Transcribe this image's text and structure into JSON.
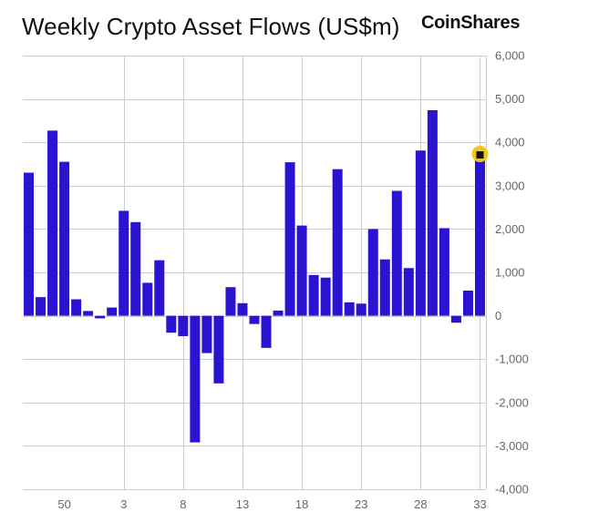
{
  "header": {
    "title": "Weekly Crypto Asset Flows (US$m)",
    "brand": "CoinShares"
  },
  "colors": {
    "bar": "#2a14d2",
    "grid": "#cccccc",
    "marker_fill": "#f2c61f",
    "marker_core": "#111111"
  },
  "chart_data": {
    "type": "bar",
    "title": "Weekly Crypto Asset Flows (US$m)",
    "xlabel": "",
    "ylabel": "",
    "ylim": [
      -4000,
      6000
    ],
    "y_axis_side": "right",
    "grid": true,
    "y_ticks": [
      -4000,
      -3000,
      -2000,
      -1000,
      0,
      1000,
      2000,
      3000,
      4000,
      5000,
      6000
    ],
    "y_tick_labels": [
      "-4,000",
      "-3,000",
      "-2,000",
      "-1,000",
      "0",
      "1,000",
      "2,000",
      "3,000",
      "4,000",
      "5,000",
      "6,000"
    ],
    "x_tick_labels": [
      "50",
      "3",
      "8",
      "13",
      "18",
      "23",
      "28",
      "33"
    ],
    "x_tick_indices": [
      3,
      8,
      13,
      18,
      23,
      28,
      33,
      38
    ],
    "values": [
      3300,
      430,
      4270,
      3550,
      380,
      110,
      -60,
      190,
      2420,
      2160,
      760,
      1280,
      -390,
      -470,
      -2920,
      -860,
      -1560,
      660,
      290,
      -190,
      -740,
      120,
      3540,
      2080,
      940,
      880,
      3380,
      310,
      280,
      2000,
      1300,
      2880,
      1100,
      3810,
      4740,
      2020,
      -160,
      580,
      3730
    ],
    "highlight_index": 38
  }
}
